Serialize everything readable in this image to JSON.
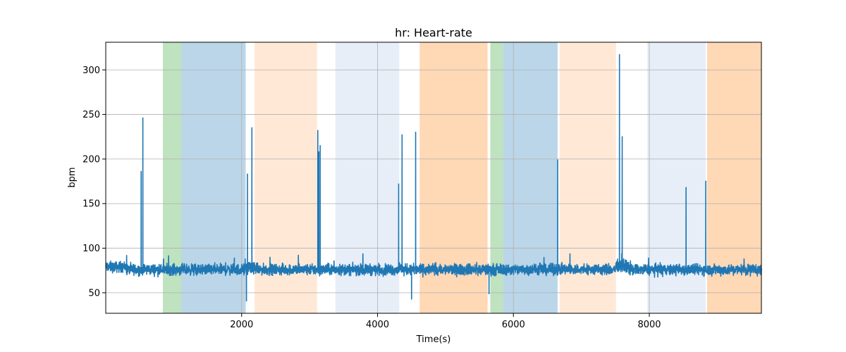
{
  "chart_data": {
    "type": "line",
    "title": "hr: Heart-rate",
    "xlabel": "Time(s)",
    "ylabel": "bpm",
    "xlim": [
      0,
      9650
    ],
    "ylim": [
      27,
      331
    ],
    "xticks": [
      2000,
      4000,
      6000,
      8000
    ],
    "yticks": [
      50,
      100,
      150,
      200,
      250,
      300
    ],
    "grid": true,
    "line_color": "#1f77b4",
    "baseline_bpm": 76,
    "spikes": [
      {
        "x": 520,
        "y": 186
      },
      {
        "x": 545,
        "y": 246
      },
      {
        "x": 2070,
        "y": 41
      },
      {
        "x": 2085,
        "y": 183
      },
      {
        "x": 2150,
        "y": 235
      },
      {
        "x": 3120,
        "y": 232
      },
      {
        "x": 3135,
        "y": 208
      },
      {
        "x": 3155,
        "y": 215
      },
      {
        "x": 4310,
        "y": 172
      },
      {
        "x": 4360,
        "y": 227
      },
      {
        "x": 4500,
        "y": 43
      },
      {
        "x": 4560,
        "y": 230
      },
      {
        "x": 5640,
        "y": 49
      },
      {
        "x": 6650,
        "y": 199
      },
      {
        "x": 7560,
        "y": 317
      },
      {
        "x": 7600,
        "y": 225
      },
      {
        "x": 8540,
        "y": 168
      },
      {
        "x": 8830,
        "y": 175
      }
    ],
    "bands": [
      {
        "x0": 840,
        "x1": 1110,
        "color": "#2ca02c",
        "opacity": 0.3
      },
      {
        "x0": 1110,
        "x1": 2060,
        "color": "#1f77b4",
        "opacity": 0.3
      },
      {
        "x0": 2190,
        "x1": 3110,
        "color": "#ff7f0e",
        "opacity": 0.17
      },
      {
        "x0": 3380,
        "x1": 4320,
        "color": "#aec7e8",
        "opacity": 0.3
      },
      {
        "x0": 4620,
        "x1": 5620,
        "color": "#ff7f0e",
        "opacity": 0.3
      },
      {
        "x0": 5660,
        "x1": 5850,
        "color": "#2ca02c",
        "opacity": 0.3
      },
      {
        "x0": 5850,
        "x1": 6650,
        "color": "#1f77b4",
        "opacity": 0.3
      },
      {
        "x0": 6680,
        "x1": 7510,
        "color": "#ff7f0e",
        "opacity": 0.17
      },
      {
        "x0": 7970,
        "x1": 8830,
        "color": "#aec7e8",
        "opacity": 0.3
      },
      {
        "x0": 8850,
        "x1": 9650,
        "color": "#ff7f0e",
        "opacity": 0.3
      }
    ]
  }
}
